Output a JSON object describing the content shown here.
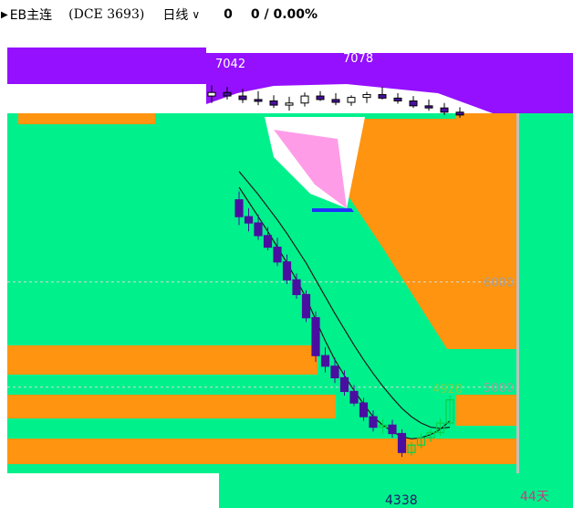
{
  "header": {
    "back_icon": "chevron-left-icon",
    "title": "EB主连",
    "code": "(DCE  3693)",
    "period": "日线",
    "period_icon": "chevron-down-icon",
    "change": "0",
    "change_pct": "0 / 0.00%"
  },
  "colors": {
    "background": "#00f08c",
    "orange": "#ff9410",
    "purple": "#9410ff",
    "candle_fill": "#4a0fa0",
    "candle_outline": "#06d04a",
    "ma_line": "#1a1a1a",
    "price_label": "#a0a0a0",
    "marker_high": "#80d040",
    "marker_low": "#1a1a6a"
  },
  "chart_data": {
    "type": "candlestick",
    "title": "",
    "price_levels": [
      6000,
      5000
    ],
    "ylim": [
      4200,
      8400
    ],
    "annotations": [
      {
        "label": "7042",
        "value": 7042
      },
      {
        "label": "7078",
        "value": 7078
      },
      {
        "label": "4920",
        "value": 4920
      },
      {
        "label": "4338",
        "value": 4338
      },
      {
        "label": "44天",
        "value": 44
      }
    ],
    "candles_upper": [
      {
        "o": 7250,
        "h": 7400,
        "l": 7150,
        "c": 7300
      },
      {
        "o": 7300,
        "h": 7380,
        "l": 7200,
        "c": 7250
      },
      {
        "o": 7250,
        "h": 7350,
        "l": 7150,
        "c": 7200
      },
      {
        "o": 7200,
        "h": 7320,
        "l": 7120,
        "c": 7180
      },
      {
        "o": 7180,
        "h": 7260,
        "l": 7080,
        "c": 7120
      },
      {
        "o": 7120,
        "h": 7240,
        "l": 7042,
        "c": 7150
      },
      {
        "o": 7150,
        "h": 7300,
        "l": 7100,
        "c": 7250
      },
      {
        "o": 7250,
        "h": 7320,
        "l": 7180,
        "c": 7200
      },
      {
        "o": 7200,
        "h": 7290,
        "l": 7120,
        "c": 7160
      },
      {
        "o": 7160,
        "h": 7260,
        "l": 7110,
        "c": 7230
      },
      {
        "o": 7230,
        "h": 7310,
        "l": 7150,
        "c": 7270
      },
      {
        "o": 7270,
        "h": 7378,
        "l": 7200,
        "c": 7220
      },
      {
        "o": 7220,
        "h": 7290,
        "l": 7140,
        "c": 7180
      },
      {
        "o": 7180,
        "h": 7250,
        "l": 7080,
        "c": 7110
      },
      {
        "o": 7110,
        "h": 7200,
        "l": 7040,
        "c": 7080
      },
      {
        "o": 7080,
        "h": 7150,
        "l": 6980,
        "c": 7020
      },
      {
        "o": 7020,
        "h": 7090,
        "l": 6940,
        "c": 6980
      }
    ],
    "candles_main": [
      {
        "o": 6780,
        "h": 6860,
        "l": 6540,
        "c": 6620
      },
      {
        "o": 6620,
        "h": 6700,
        "l": 6480,
        "c": 6560
      },
      {
        "o": 6560,
        "h": 6640,
        "l": 6400,
        "c": 6440
      },
      {
        "o": 6440,
        "h": 6520,
        "l": 6300,
        "c": 6330
      },
      {
        "o": 6330,
        "h": 6420,
        "l": 6150,
        "c": 6190
      },
      {
        "o": 6190,
        "h": 6260,
        "l": 5980,
        "c": 6020
      },
      {
        "o": 6020,
        "h": 6080,
        "l": 5840,
        "c": 5880
      },
      {
        "o": 5880,
        "h": 5920,
        "l": 5620,
        "c": 5660
      },
      {
        "o": 5660,
        "h": 5720,
        "l": 5240,
        "c": 5300
      },
      {
        "o": 5300,
        "h": 5380,
        "l": 5140,
        "c": 5200
      },
      {
        "o": 5200,
        "h": 5280,
        "l": 5040,
        "c": 5090
      },
      {
        "o": 5090,
        "h": 5160,
        "l": 4920,
        "c": 4960
      },
      {
        "o": 4960,
        "h": 5020,
        "l": 4820,
        "c": 4850
      },
      {
        "o": 4850,
        "h": 4900,
        "l": 4680,
        "c": 4720
      },
      {
        "o": 4720,
        "h": 4780,
        "l": 4580,
        "c": 4620
      },
      {
        "o": 4620,
        "h": 4700,
        "l": 4560,
        "c": 4640
      },
      {
        "o": 4640,
        "h": 4690,
        "l": 4520,
        "c": 4560
      },
      {
        "o": 4560,
        "h": 4600,
        "l": 4338,
        "c": 4380
      },
      {
        "o": 4380,
        "h": 4480,
        "l": 4350,
        "c": 4450
      },
      {
        "o": 4450,
        "h": 4560,
        "l": 4420,
        "c": 4520
      },
      {
        "o": 4520,
        "h": 4600,
        "l": 4480,
        "c": 4570
      },
      {
        "o": 4570,
        "h": 4700,
        "l": 4540,
        "c": 4660
      },
      {
        "o": 4660,
        "h": 4920,
        "l": 4640,
        "c": 4880
      }
    ],
    "ma_fast": [
      6900,
      6760,
      6620,
      6480,
      6330,
      6180,
      6020,
      5850,
      5640,
      5440,
      5260,
      5110,
      4970,
      4840,
      4720,
      4640,
      4580,
      4530,
      4510,
      4520,
      4550,
      4600,
      4680
    ],
    "ma_slow": [
      7050,
      6940,
      6830,
      6710,
      6590,
      6460,
      6320,
      6180,
      6020,
      5860,
      5700,
      5550,
      5400,
      5260,
      5130,
      5010,
      4900,
      4800,
      4720,
      4660,
      4620,
      4610,
      4620
    ]
  }
}
